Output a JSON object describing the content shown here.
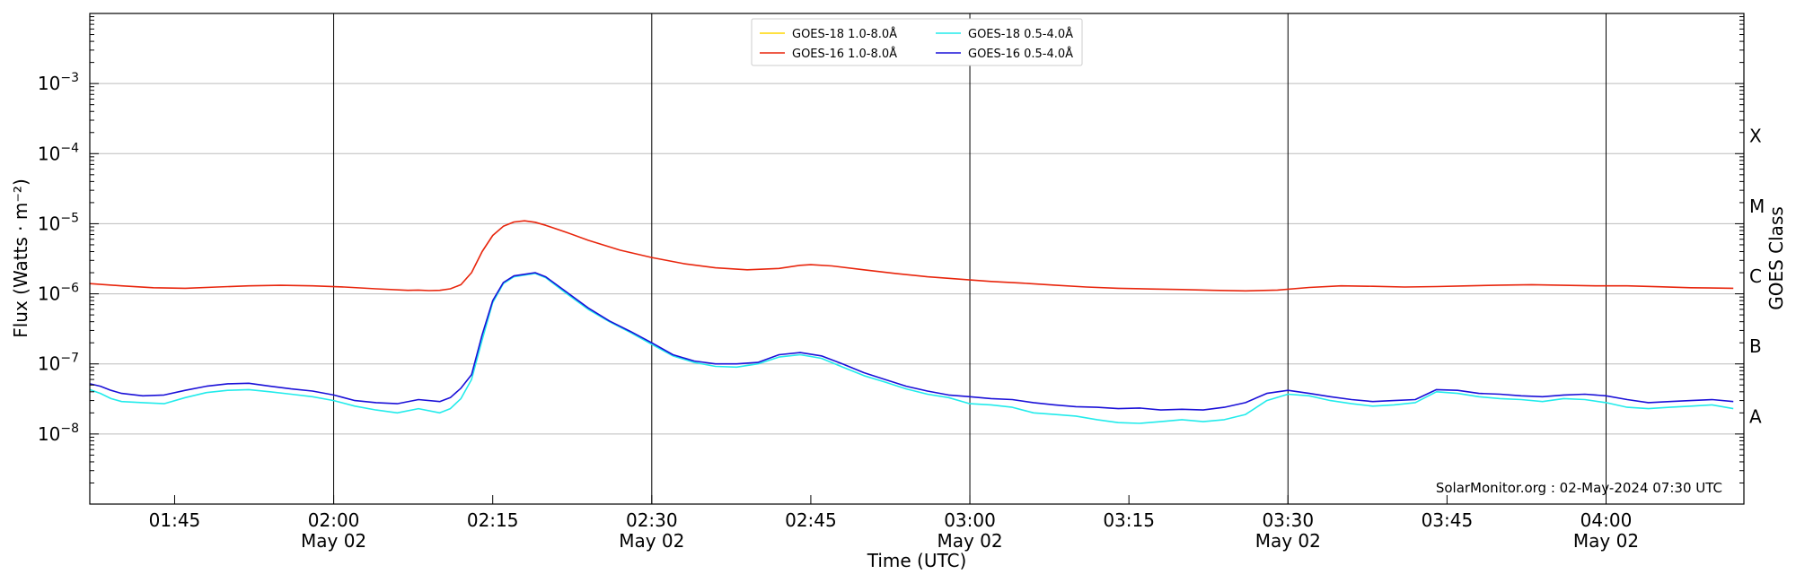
{
  "chart_data": {
    "type": "line",
    "xlabel": "Time (UTC)",
    "ylabel": "Flux (Watts · m⁻²)",
    "right_axis_label": "GOES Class",
    "credit": "SolarMonitor.org : 02-May-2024 07:30 UTC",
    "y_scale": "log",
    "ylim": [
      1e-09,
      0.01
    ],
    "xlim_minutes": [
      97,
      253
    ],
    "x_unit": "minutes after 00:00 UTC, 02-May-2024",
    "grid": "horizontal at decades",
    "legend_position": "top-center",
    "y_ticks": [
      {
        "value": 1e-08,
        "label_base": "10",
        "label_exp": "−8"
      },
      {
        "value": 1e-07,
        "label_base": "10",
        "label_exp": "−7"
      },
      {
        "value": 1e-06,
        "label_base": "10",
        "label_exp": "−6"
      },
      {
        "value": 1e-05,
        "label_base": "10",
        "label_exp": "−5"
      },
      {
        "value": 0.0001,
        "label_base": "10",
        "label_exp": "−4"
      },
      {
        "value": 0.001,
        "label_base": "10",
        "label_exp": "−3"
      }
    ],
    "x_major_ticks": [
      {
        "minute": 120,
        "time": "02:00",
        "date": "May 02"
      },
      {
        "minute": 150,
        "time": "02:30",
        "date": "May 02"
      },
      {
        "minute": 180,
        "time": "03:00",
        "date": "May 02"
      },
      {
        "minute": 210,
        "time": "03:30",
        "date": "May 02"
      },
      {
        "minute": 240,
        "time": "04:00",
        "date": "May 02"
      }
    ],
    "x_minor_ticks": [
      {
        "minute": 105,
        "time": "01:45"
      },
      {
        "minute": 135,
        "time": "02:15"
      },
      {
        "minute": 165,
        "time": "02:45"
      },
      {
        "minute": 195,
        "time": "03:15"
      },
      {
        "minute": 225,
        "time": "03:45"
      }
    ],
    "goes_classes": [
      {
        "label": "A",
        "value": 1.78e-08
      },
      {
        "label": "B",
        "value": 1.78e-07
      },
      {
        "label": "C",
        "value": 1.78e-06
      },
      {
        "label": "M",
        "value": 1.78e-05
      },
      {
        "label": "X",
        "value": 0.000178
      }
    ],
    "series": [
      {
        "name": "GOES-18 1.0-8.0Å",
        "color": "#ffd700",
        "x": [],
        "y": []
      },
      {
        "name": "GOES-16 1.0-8.0Å",
        "color": "#e8250c",
        "x": [
          97,
          100,
          103,
          106,
          109,
          112,
          115,
          118,
          121,
          124,
          127,
          128,
          129,
          130,
          131,
          132,
          133,
          134,
          135,
          136,
          137,
          138,
          139,
          140,
          142,
          144,
          147,
          150,
          153,
          156,
          159,
          162,
          164,
          165,
          167,
          170,
          173,
          176,
          179,
          182,
          185,
          188,
          191,
          194,
          197,
          200,
          203,
          206,
          209,
          212,
          215,
          218,
          221,
          224,
          227,
          230,
          233,
          236,
          239,
          242,
          245,
          248,
          252
        ],
        "y": [
          1.4e-06,
          1.3e-06,
          1.22e-06,
          1.2e-06,
          1.25e-06,
          1.3e-06,
          1.32e-06,
          1.3e-06,
          1.25e-06,
          1.18e-06,
          1.12e-06,
          1.13e-06,
          1.11e-06,
          1.12e-06,
          1.18e-06,
          1.35e-06,
          2e-06,
          4e-06,
          6.8e-06,
          9.2e-06,
          1.06e-05,
          1.1e-05,
          1.05e-05,
          9.5e-06,
          7.5e-06,
          5.8e-06,
          4.2e-06,
          3.3e-06,
          2.7e-06,
          2.35e-06,
          2.2e-06,
          2.3e-06,
          2.55e-06,
          2.6e-06,
          2.5e-06,
          2.2e-06,
          1.95e-06,
          1.75e-06,
          1.62e-06,
          1.5e-06,
          1.42e-06,
          1.33e-06,
          1.25e-06,
          1.2e-06,
          1.17e-06,
          1.15e-06,
          1.12e-06,
          1.1e-06,
          1.13e-06,
          1.23e-06,
          1.3e-06,
          1.28e-06,
          1.25e-06,
          1.27e-06,
          1.3e-06,
          1.33e-06,
          1.35e-06,
          1.32e-06,
          1.3e-06,
          1.3e-06,
          1.26e-06,
          1.22e-06,
          1.2e-06
        ]
      },
      {
        "name": "GOES-18 0.5-4.0Å",
        "color": "#22ebeb",
        "x": [
          97,
          98,
          99,
          100,
          102,
          104,
          106,
          108,
          110,
          112,
          114,
          116,
          118,
          120,
          122,
          124,
          126,
          128,
          130,
          131,
          132,
          133,
          134,
          135,
          136,
          137,
          138,
          139,
          140,
          142,
          144,
          146,
          148,
          150,
          152,
          154,
          156,
          158,
          160,
          162,
          164,
          166,
          168,
          170,
          172,
          174,
          176,
          178,
          180,
          182,
          184,
          186,
          188,
          190,
          192,
          194,
          196,
          198,
          200,
          202,
          204,
          206,
          208,
          210,
          212,
          214,
          216,
          218,
          220,
          222,
          224,
          226,
          228,
          230,
          232,
          234,
          236,
          238,
          240,
          242,
          244,
          246,
          248,
          250,
          252
        ],
        "y": [
          4.3e-08,
          3.8e-08,
          3.2e-08,
          2.9e-08,
          2.8e-08,
          2.7e-08,
          3.3e-08,
          3.9e-08,
          4.2e-08,
          4.3e-08,
          4e-08,
          3.7e-08,
          3.4e-08,
          3e-08,
          2.5e-08,
          2.2e-08,
          2e-08,
          2.3e-08,
          2e-08,
          2.3e-08,
          3.2e-08,
          6e-08,
          2.2e-07,
          7.5e-07,
          1.4e-06,
          1.75e-06,
          1.85e-06,
          1.95e-06,
          1.7e-06,
          1e-06,
          6e-07,
          4e-07,
          2.8e-07,
          1.9e-07,
          1.3e-07,
          1.05e-07,
          9.2e-08,
          9e-08,
          1e-07,
          1.25e-07,
          1.35e-07,
          1.2e-07,
          9e-08,
          6.8e-08,
          5.5e-08,
          4.4e-08,
          3.7e-08,
          3.3e-08,
          2.7e-08,
          2.6e-08,
          2.4e-08,
          2e-08,
          1.9e-08,
          1.8e-08,
          1.6e-08,
          1.45e-08,
          1.42e-08,
          1.5e-08,
          1.6e-08,
          1.5e-08,
          1.6e-08,
          1.9e-08,
          3e-08,
          3.7e-08,
          3.5e-08,
          3e-08,
          2.7e-08,
          2.5e-08,
          2.6e-08,
          2.8e-08,
          4e-08,
          3.8e-08,
          3.4e-08,
          3.2e-08,
          3.1e-08,
          2.9e-08,
          3.2e-08,
          3.1e-08,
          2.8e-08,
          2.4e-08,
          2.3e-08,
          2.4e-08,
          2.5e-08,
          2.6e-08,
          2.3e-08
        ]
      },
      {
        "name": "GOES-16 0.5-4.0Å",
        "color": "#1a10d8",
        "x": [
          97,
          98,
          99,
          100,
          102,
          104,
          106,
          108,
          110,
          112,
          114,
          116,
          118,
          120,
          122,
          124,
          126,
          128,
          130,
          131,
          132,
          133,
          134,
          135,
          136,
          137,
          138,
          139,
          140,
          142,
          144,
          146,
          148,
          150,
          152,
          154,
          156,
          158,
          160,
          162,
          164,
          166,
          168,
          170,
          172,
          174,
          176,
          178,
          180,
          182,
          184,
          186,
          188,
          190,
          192,
          194,
          196,
          198,
          200,
          202,
          204,
          206,
          208,
          210,
          212,
          214,
          216,
          218,
          220,
          222,
          224,
          226,
          228,
          230,
          232,
          234,
          236,
          238,
          240,
          242,
          244,
          246,
          248,
          250,
          252
        ],
        "y": [
          5.2e-08,
          4.8e-08,
          4.2e-08,
          3.8e-08,
          3.5e-08,
          3.6e-08,
          4.2e-08,
          4.8e-08,
          5.2e-08,
          5.3e-08,
          4.8e-08,
          4.4e-08,
          4.1e-08,
          3.6e-08,
          3e-08,
          2.8e-08,
          2.7e-08,
          3.1e-08,
          2.9e-08,
          3.3e-08,
          4.5e-08,
          7e-08,
          2.6e-07,
          8e-07,
          1.45e-06,
          1.8e-06,
          1.9e-06,
          2e-06,
          1.75e-06,
          1.05e-06,
          6.3e-07,
          4.1e-07,
          2.9e-07,
          2e-07,
          1.35e-07,
          1.1e-07,
          1e-07,
          1e-07,
          1.05e-07,
          1.35e-07,
          1.45e-07,
          1.3e-07,
          1e-07,
          7.5e-08,
          6e-08,
          4.8e-08,
          4.1e-08,
          3.6e-08,
          3.4e-08,
          3.2e-08,
          3.1e-08,
          2.8e-08,
          2.6e-08,
          2.45e-08,
          2.4e-08,
          2.3e-08,
          2.35e-08,
          2.2e-08,
          2.25e-08,
          2.2e-08,
          2.4e-08,
          2.8e-08,
          3.8e-08,
          4.2e-08,
          3.8e-08,
          3.4e-08,
          3.1e-08,
          2.9e-08,
          3e-08,
          3.1e-08,
          4.3e-08,
          4.2e-08,
          3.8e-08,
          3.7e-08,
          3.5e-08,
          3.4e-08,
          3.6e-08,
          3.7e-08,
          3.5e-08,
          3.1e-08,
          2.8e-08,
          2.9e-08,
          3e-08,
          3.1e-08,
          2.9e-08
        ]
      }
    ]
  }
}
